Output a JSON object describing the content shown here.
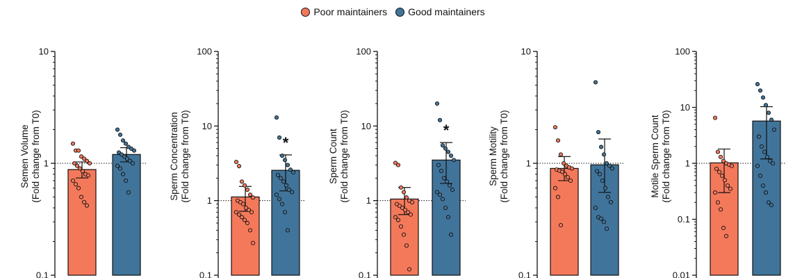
{
  "legend": {
    "items": [
      {
        "label": "Poor maintainers",
        "color": "#F4795B"
      },
      {
        "label": "Good maintainers",
        "color": "#41749A"
      }
    ]
  },
  "chart_data": [
    {
      "type": "bar",
      "scale": "log",
      "ylabel": [
        "Semen Volume",
        "(Fold change from T0)"
      ],
      "ylim": [
        0.1,
        10
      ],
      "ticks": [
        {
          "v": 0.1,
          "label": "0.1"
        },
        {
          "v": 1,
          "label": "1"
        },
        {
          "v": 10,
          "label": "10"
        }
      ],
      "reference_line": 1,
      "significance": "",
      "series": [
        {
          "name": "Poor maintainers",
          "mean": 0.88,
          "err_low": 0.74,
          "err_high": 1.03,
          "points": [
            1.5,
            1.3,
            1.3,
            1.15,
            1.1,
            1.05,
            1.0,
            1.0,
            0.95,
            0.9,
            0.85,
            0.8,
            0.78,
            0.7,
            0.65,
            0.6,
            0.5,
            0.45,
            0.42
          ]
        },
        {
          "name": "Good maintainers",
          "mean": 1.2,
          "err_low": 1.03,
          "err_high": 1.38,
          "points": [
            2.0,
            1.8,
            1.6,
            1.5,
            1.4,
            1.35,
            1.3,
            1.25,
            1.2,
            1.15,
            1.1,
            1.05,
            1.0,
            0.95,
            0.9,
            0.8,
            0.7,
            0.55
          ]
        }
      ]
    },
    {
      "type": "bar",
      "scale": "log",
      "ylabel": [
        "Sperm Concentration",
        "(Fold change from T0)"
      ],
      "ylim": [
        0.1,
        100
      ],
      "ticks": [
        {
          "v": 0.1,
          "label": "0.1"
        },
        {
          "v": 1,
          "label": "1"
        },
        {
          "v": 10,
          "label": "10"
        },
        {
          "v": 100,
          "label": "100"
        }
      ],
      "reference_line": 1,
      "significance": "*",
      "series": [
        {
          "name": "Poor maintainers",
          "mean": 1.12,
          "err_low": 0.72,
          "err_high": 1.55,
          "points": [
            3.3,
            2.9,
            1.8,
            1.6,
            1.4,
            1.2,
            1.1,
            1.0,
            0.95,
            0.9,
            0.8,
            0.75,
            0.7,
            0.7,
            0.65,
            0.6,
            0.55,
            0.5,
            0.4,
            0.27
          ]
        },
        {
          "name": "Good maintainers",
          "mean": 2.55,
          "err_low": 1.35,
          "err_high": 4.1,
          "points": [
            13,
            7,
            4.0,
            3.5,
            3.0,
            2.6,
            2.4,
            2.2,
            2.0,
            1.8,
            1.6,
            1.4,
            1.3,
            1.2,
            1.05,
            0.9,
            0.7,
            0.4
          ]
        }
      ]
    },
    {
      "type": "bar",
      "scale": "log",
      "ylabel": [
        "Sperm Count",
        "(Fold change from T0)"
      ],
      "ylim": [
        0.1,
        100
      ],
      "ticks": [
        {
          "v": 0.1,
          "label": "0.1"
        },
        {
          "v": 1,
          "label": "1"
        },
        {
          "v": 10,
          "label": "10"
        },
        {
          "v": 100,
          "label": "100"
        }
      ],
      "reference_line": 1,
      "significance": "*",
      "series": [
        {
          "name": "Poor maintainers",
          "mean": 1.05,
          "err_low": 0.65,
          "err_high": 1.5,
          "points": [
            3.2,
            3.0,
            1.5,
            1.3,
            1.1,
            1.0,
            0.95,
            0.9,
            0.85,
            0.8,
            0.75,
            0.7,
            0.65,
            0.6,
            0.55,
            0.45,
            0.35,
            0.25,
            0.12
          ]
        },
        {
          "name": "Good maintainers",
          "mean": 3.5,
          "err_low": 1.7,
          "err_high": 6.0,
          "points": [
            20,
            12,
            5.5,
            5.0,
            4.5,
            4.0,
            3.5,
            3.0,
            2.5,
            2.0,
            1.8,
            1.6,
            1.4,
            1.3,
            1.2,
            1.05,
            0.8,
            0.6,
            0.35
          ]
        }
      ]
    },
    {
      "type": "bar",
      "scale": "log",
      "ylabel": [
        "Sperm Motility",
        "(Fold change from T0)"
      ],
      "ylim": [
        0.1,
        10
      ],
      "ticks": [
        {
          "v": 0.1,
          "label": "0.1"
        },
        {
          "v": 1,
          "label": "1"
        },
        {
          "v": 10,
          "label": "10"
        }
      ],
      "reference_line": 1,
      "significance": "",
      "series": [
        {
          "name": "Poor maintainers",
          "mean": 0.9,
          "err_low": 0.7,
          "err_high": 1.15,
          "points": [
            2.1,
            1.6,
            1.2,
            1.0,
            0.95,
            0.92,
            0.9,
            0.88,
            0.86,
            0.84,
            0.8,
            0.75,
            0.7,
            0.6,
            0.5,
            0.28
          ]
        },
        {
          "name": "Good maintainers",
          "mean": 0.97,
          "err_low": 0.55,
          "err_high": 1.65,
          "points": [
            5.3,
            1.9,
            1.4,
            1.2,
            1.0,
            0.95,
            0.9,
            0.85,
            0.8,
            0.7,
            0.6,
            0.5,
            0.45,
            0.4,
            0.33,
            0.32,
            0.3,
            0.26
          ]
        }
      ]
    },
    {
      "type": "bar",
      "scale": "log",
      "ylabel": [
        "Motile Sperm Count",
        "(Fold change from T0)"
      ],
      "ylim": [
        0.01,
        100
      ],
      "ticks": [
        {
          "v": 0.01,
          "label": "0.01"
        },
        {
          "v": 0.1,
          "label": "0.1"
        },
        {
          "v": 1,
          "label": "1"
        },
        {
          "v": 10,
          "label": "10"
        },
        {
          "v": 100,
          "label": "100"
        }
      ],
      "reference_line": 1,
      "significance": "",
      "series": [
        {
          "name": "Poor maintainers",
          "mean": 1.02,
          "err_low": 0.3,
          "err_high": 1.8,
          "points": [
            6.5,
            1.6,
            1.3,
            1.1,
            1.0,
            0.95,
            0.9,
            0.8,
            0.7,
            0.6,
            0.5,
            0.4,
            0.35,
            0.3,
            0.2,
            0.15,
            0.07,
            0.05
          ]
        },
        {
          "name": "Good maintainers",
          "mean": 5.7,
          "err_low": 1.2,
          "err_high": 10.3,
          "points": [
            26,
            20,
            15,
            11,
            8,
            6,
            4,
            3,
            2,
            1.6,
            1.3,
            1.1,
            1.0,
            0.9,
            0.6,
            0.4,
            0.3,
            0.2,
            0.18
          ]
        }
      ]
    }
  ]
}
